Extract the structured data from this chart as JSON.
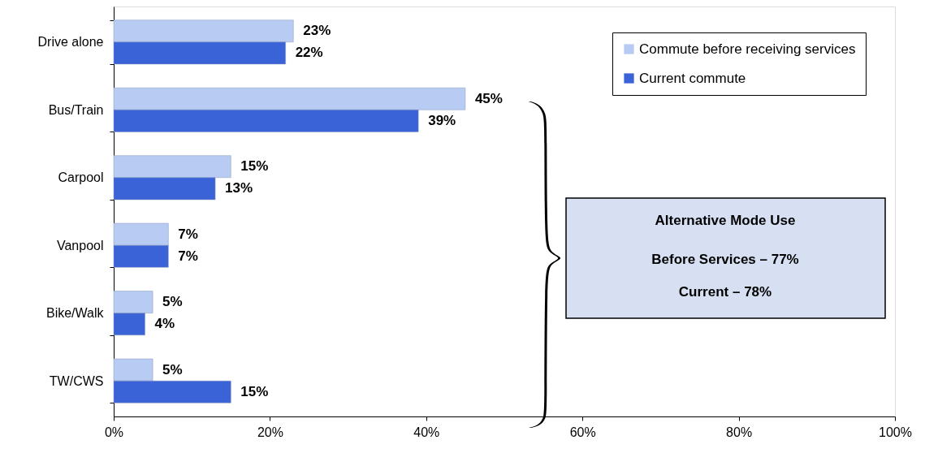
{
  "chart_data": {
    "type": "bar",
    "orientation": "horizontal",
    "categories": [
      "Drive alone",
      "Bus/Train",
      "Carpool",
      "Vanpool",
      "Bike/Walk",
      "TW/CWS"
    ],
    "series": [
      {
        "name": "Commute before receiving services",
        "color": "#b7cbf3",
        "values": [
          23,
          45,
          15,
          7,
          5,
          5
        ],
        "value_labels": [
          "23%",
          "45%",
          "15%",
          "7%",
          "5%",
          "5%"
        ]
      },
      {
        "name": "Current commute",
        "color": "#3b63d8",
        "values": [
          22,
          39,
          13,
          7,
          4,
          15
        ],
        "value_labels": [
          "22%",
          "39%",
          "13%",
          "7%",
          "4%",
          "15%"
        ]
      }
    ],
    "xlim": [
      0,
      100
    ],
    "xticks": [
      {
        "value": 0,
        "label": "0%"
      },
      {
        "value": 20,
        "label": "20%"
      },
      {
        "value": 40,
        "label": "40%"
      },
      {
        "value": 60,
        "label": "60%"
      },
      {
        "value": 80,
        "label": "80%"
      },
      {
        "value": 100,
        "label": "100%"
      }
    ],
    "legend": "top right",
    "grid": false,
    "annotations": [
      "Alternative Mode Use",
      "Before Services – 77%",
      "Current – 78%"
    ]
  }
}
